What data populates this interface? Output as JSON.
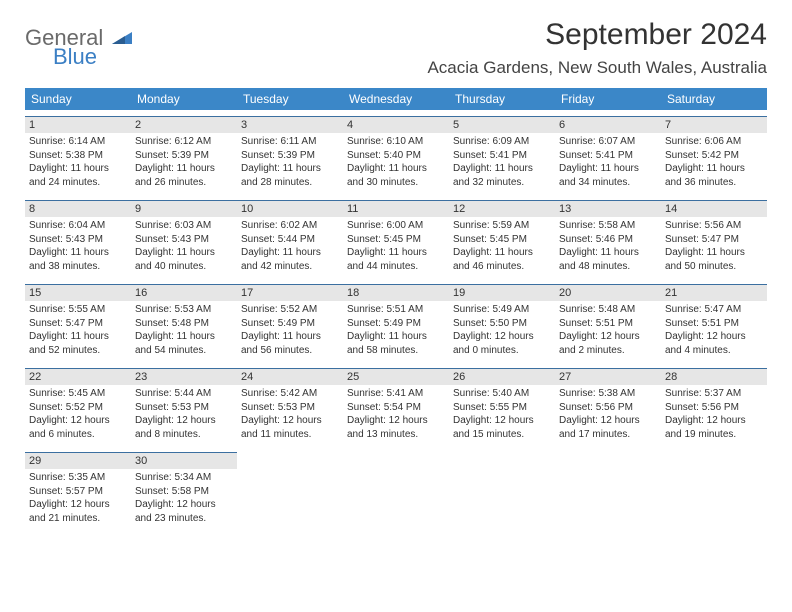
{
  "logo": {
    "word1": "General",
    "word2": "Blue"
  },
  "title": "September 2024",
  "location": "Acacia Gardens, New South Wales, Australia",
  "colors": {
    "header_bg": "#3b87c8",
    "header_text": "#ffffff",
    "daynum_bg": "#e6e6e6",
    "daynum_border": "#3b6fa0",
    "body_text": "#333333",
    "logo_gray": "#6a6a6a",
    "logo_blue": "#3b7fc4"
  },
  "dow": [
    "Sunday",
    "Monday",
    "Tuesday",
    "Wednesday",
    "Thursday",
    "Friday",
    "Saturday"
  ],
  "weeks": [
    [
      {
        "n": "1",
        "sr": "Sunrise: 6:14 AM",
        "ss": "Sunset: 5:38 PM",
        "d1": "Daylight: 11 hours",
        "d2": "and 24 minutes."
      },
      {
        "n": "2",
        "sr": "Sunrise: 6:12 AM",
        "ss": "Sunset: 5:39 PM",
        "d1": "Daylight: 11 hours",
        "d2": "and 26 minutes."
      },
      {
        "n": "3",
        "sr": "Sunrise: 6:11 AM",
        "ss": "Sunset: 5:39 PM",
        "d1": "Daylight: 11 hours",
        "d2": "and 28 minutes."
      },
      {
        "n": "4",
        "sr": "Sunrise: 6:10 AM",
        "ss": "Sunset: 5:40 PM",
        "d1": "Daylight: 11 hours",
        "d2": "and 30 minutes."
      },
      {
        "n": "5",
        "sr": "Sunrise: 6:09 AM",
        "ss": "Sunset: 5:41 PM",
        "d1": "Daylight: 11 hours",
        "d2": "and 32 minutes."
      },
      {
        "n": "6",
        "sr": "Sunrise: 6:07 AM",
        "ss": "Sunset: 5:41 PM",
        "d1": "Daylight: 11 hours",
        "d2": "and 34 minutes."
      },
      {
        "n": "7",
        "sr": "Sunrise: 6:06 AM",
        "ss": "Sunset: 5:42 PM",
        "d1": "Daylight: 11 hours",
        "d2": "and 36 minutes."
      }
    ],
    [
      {
        "n": "8",
        "sr": "Sunrise: 6:04 AM",
        "ss": "Sunset: 5:43 PM",
        "d1": "Daylight: 11 hours",
        "d2": "and 38 minutes."
      },
      {
        "n": "9",
        "sr": "Sunrise: 6:03 AM",
        "ss": "Sunset: 5:43 PM",
        "d1": "Daylight: 11 hours",
        "d2": "and 40 minutes."
      },
      {
        "n": "10",
        "sr": "Sunrise: 6:02 AM",
        "ss": "Sunset: 5:44 PM",
        "d1": "Daylight: 11 hours",
        "d2": "and 42 minutes."
      },
      {
        "n": "11",
        "sr": "Sunrise: 6:00 AM",
        "ss": "Sunset: 5:45 PM",
        "d1": "Daylight: 11 hours",
        "d2": "and 44 minutes."
      },
      {
        "n": "12",
        "sr": "Sunrise: 5:59 AM",
        "ss": "Sunset: 5:45 PM",
        "d1": "Daylight: 11 hours",
        "d2": "and 46 minutes."
      },
      {
        "n": "13",
        "sr": "Sunrise: 5:58 AM",
        "ss": "Sunset: 5:46 PM",
        "d1": "Daylight: 11 hours",
        "d2": "and 48 minutes."
      },
      {
        "n": "14",
        "sr": "Sunrise: 5:56 AM",
        "ss": "Sunset: 5:47 PM",
        "d1": "Daylight: 11 hours",
        "d2": "and 50 minutes."
      }
    ],
    [
      {
        "n": "15",
        "sr": "Sunrise: 5:55 AM",
        "ss": "Sunset: 5:47 PM",
        "d1": "Daylight: 11 hours",
        "d2": "and 52 minutes."
      },
      {
        "n": "16",
        "sr": "Sunrise: 5:53 AM",
        "ss": "Sunset: 5:48 PM",
        "d1": "Daylight: 11 hours",
        "d2": "and 54 minutes."
      },
      {
        "n": "17",
        "sr": "Sunrise: 5:52 AM",
        "ss": "Sunset: 5:49 PM",
        "d1": "Daylight: 11 hours",
        "d2": "and 56 minutes."
      },
      {
        "n": "18",
        "sr": "Sunrise: 5:51 AM",
        "ss": "Sunset: 5:49 PM",
        "d1": "Daylight: 11 hours",
        "d2": "and 58 minutes."
      },
      {
        "n": "19",
        "sr": "Sunrise: 5:49 AM",
        "ss": "Sunset: 5:50 PM",
        "d1": "Daylight: 12 hours",
        "d2": "and 0 minutes."
      },
      {
        "n": "20",
        "sr": "Sunrise: 5:48 AM",
        "ss": "Sunset: 5:51 PM",
        "d1": "Daylight: 12 hours",
        "d2": "and 2 minutes."
      },
      {
        "n": "21",
        "sr": "Sunrise: 5:47 AM",
        "ss": "Sunset: 5:51 PM",
        "d1": "Daylight: 12 hours",
        "d2": "and 4 minutes."
      }
    ],
    [
      {
        "n": "22",
        "sr": "Sunrise: 5:45 AM",
        "ss": "Sunset: 5:52 PM",
        "d1": "Daylight: 12 hours",
        "d2": "and 6 minutes."
      },
      {
        "n": "23",
        "sr": "Sunrise: 5:44 AM",
        "ss": "Sunset: 5:53 PM",
        "d1": "Daylight: 12 hours",
        "d2": "and 8 minutes."
      },
      {
        "n": "24",
        "sr": "Sunrise: 5:42 AM",
        "ss": "Sunset: 5:53 PM",
        "d1": "Daylight: 12 hours",
        "d2": "and 11 minutes."
      },
      {
        "n": "25",
        "sr": "Sunrise: 5:41 AM",
        "ss": "Sunset: 5:54 PM",
        "d1": "Daylight: 12 hours",
        "d2": "and 13 minutes."
      },
      {
        "n": "26",
        "sr": "Sunrise: 5:40 AM",
        "ss": "Sunset: 5:55 PM",
        "d1": "Daylight: 12 hours",
        "d2": "and 15 minutes."
      },
      {
        "n": "27",
        "sr": "Sunrise: 5:38 AM",
        "ss": "Sunset: 5:56 PM",
        "d1": "Daylight: 12 hours",
        "d2": "and 17 minutes."
      },
      {
        "n": "28",
        "sr": "Sunrise: 5:37 AM",
        "ss": "Sunset: 5:56 PM",
        "d1": "Daylight: 12 hours",
        "d2": "and 19 minutes."
      }
    ],
    [
      {
        "n": "29",
        "sr": "Sunrise: 5:35 AM",
        "ss": "Sunset: 5:57 PM",
        "d1": "Daylight: 12 hours",
        "d2": "and 21 minutes."
      },
      {
        "n": "30",
        "sr": "Sunrise: 5:34 AM",
        "ss": "Sunset: 5:58 PM",
        "d1": "Daylight: 12 hours",
        "d2": "and 23 minutes."
      },
      null,
      null,
      null,
      null,
      null
    ]
  ]
}
